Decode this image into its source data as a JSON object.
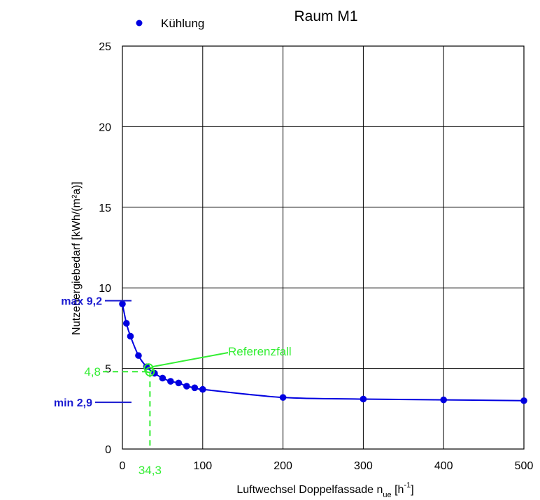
{
  "chart_data": {
    "type": "scatter",
    "title": "Raum M1",
    "xlabel": {
      "main": "Luftwechsel Doppelfassade n",
      "sub": "ue",
      "unit_open": " [h",
      "sup": "-1",
      "unit_close": "]"
    },
    "ylabel": "Nutzenergiebedarf [kWh/(m²a)]",
    "xlim": [
      0,
      500
    ],
    "ylim": [
      0,
      25
    ],
    "x_ticks": [
      0,
      100,
      200,
      300,
      400,
      500
    ],
    "y_ticks": [
      0,
      5,
      10,
      15,
      20,
      25
    ],
    "grid": true,
    "legend": {
      "position": "top-left",
      "entries": [
        "Kühlung"
      ]
    },
    "series": [
      {
        "name": "Kühlung",
        "x": [
          0,
          5,
          10,
          20,
          30,
          40,
          50,
          60,
          70,
          80,
          90,
          100,
          200,
          300,
          400,
          500
        ],
        "y": [
          9.0,
          7.8,
          7.0,
          5.8,
          5.1,
          4.7,
          4.4,
          4.2,
          4.1,
          3.9,
          3.8,
          3.7,
          3.2,
          3.1,
          3.05,
          3.0
        ],
        "color": "#0000e0",
        "curve_fit": true
      }
    ],
    "annotations": {
      "max_label": "max 9,2",
      "max_value": 9.2,
      "min_label": "min 2,9",
      "min_value": 2.9,
      "reference_label": "Referenzfall",
      "reference_x": 34.3,
      "reference_y": 4.8,
      "reference_x_label": "34,3",
      "reference_y_label": "4,8"
    },
    "colors": {
      "series": "#0000e0",
      "annotation_blue": "#1a1ad0",
      "reference": "#33ee33"
    }
  }
}
